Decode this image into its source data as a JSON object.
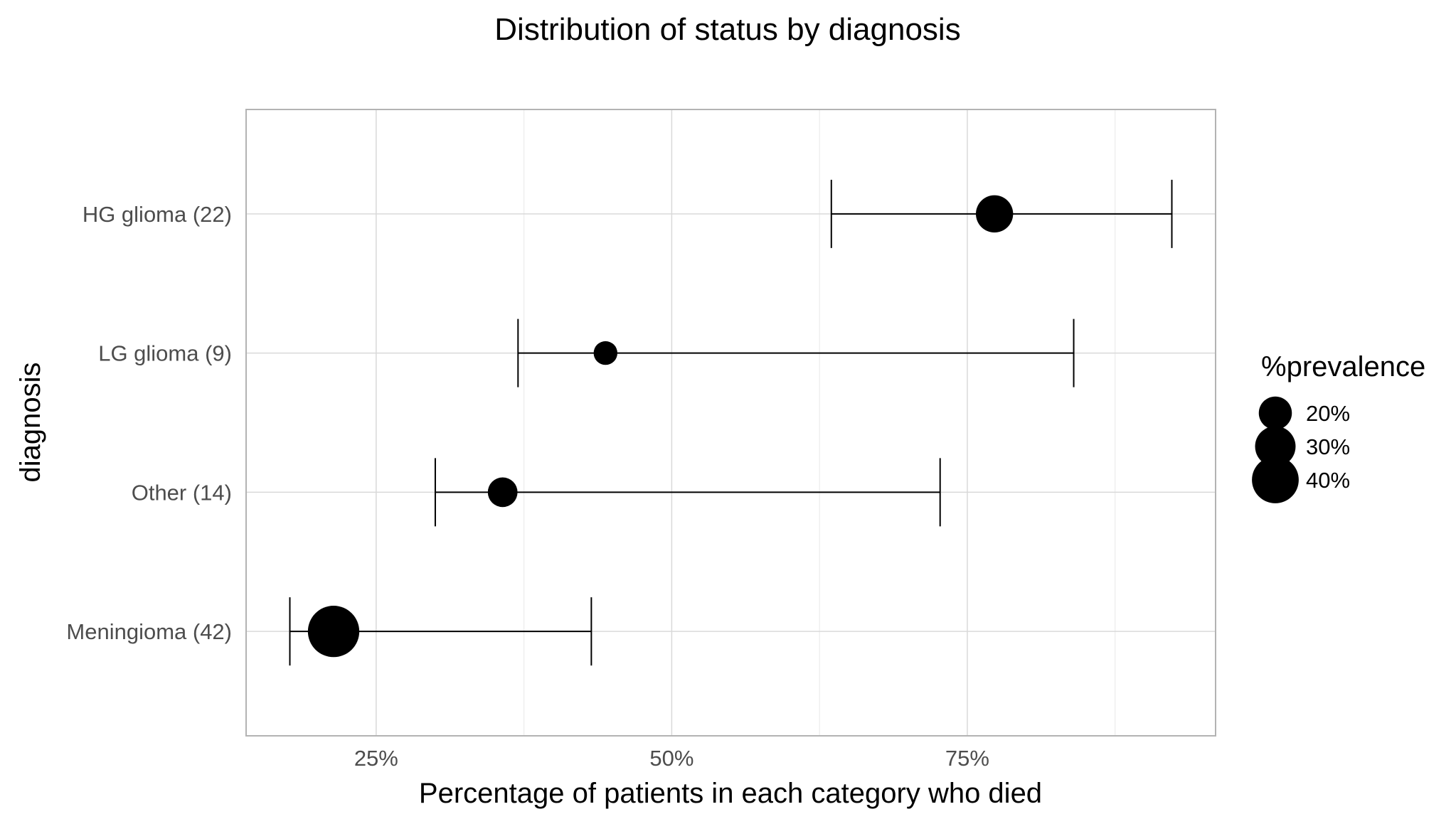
{
  "chart_data": {
    "type": "scatter",
    "title": "Distribution of status by diagnosis",
    "xlabel": "Percentage of patients in each category who died",
    "ylabel": "diagnosis",
    "xlim": [
      14,
      96
    ],
    "x_ticks": [
      25,
      50,
      75
    ],
    "x_tick_labels": [
      "25%",
      "50%",
      "75%"
    ],
    "x_minor_ticks": [
      37.5,
      62.5,
      87.5
    ],
    "grid": true,
    "categories": [
      "HG glioma (22)",
      "LG glioma (9)",
      "Other (14)",
      "Meningioma (42)"
    ],
    "series": [
      {
        "points": [
          {
            "category": "HG glioma (22)",
            "value": 77.3,
            "lower": 63.5,
            "upper": 92.3,
            "prevalence": 25.3
          },
          {
            "category": "LG glioma (9)",
            "value": 44.4,
            "lower": 37.0,
            "upper": 84.0,
            "prevalence": 10.3
          },
          {
            "category": "Other (14)",
            "value": 35.7,
            "lower": 30.0,
            "upper": 72.7,
            "prevalence": 16.1
          },
          {
            "category": "Meningioma (42)",
            "value": 21.4,
            "lower": 17.7,
            "upper": 43.2,
            "prevalence": 48.3
          }
        ]
      }
    ],
    "legend": {
      "title": "%prevalence",
      "position": "right",
      "entries": [
        {
          "label": "20%",
          "value": 20
        },
        {
          "label": "30%",
          "value": 30
        },
        {
          "label": "40%",
          "value": 40
        }
      ]
    }
  }
}
